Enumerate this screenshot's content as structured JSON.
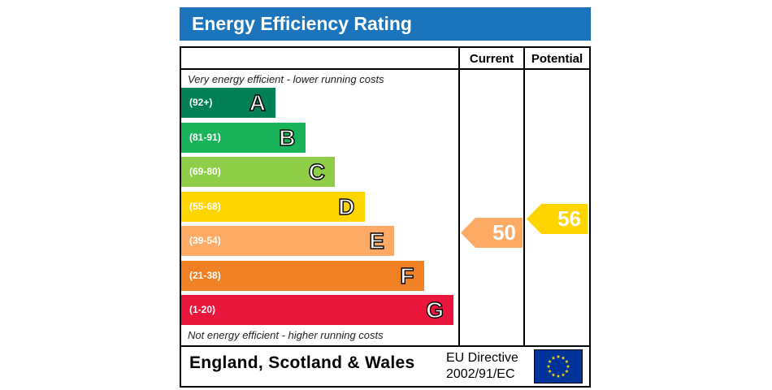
{
  "header": {
    "title": "Energy Efficiency Rating"
  },
  "columns": {
    "current": "Current",
    "potential": "Potential"
  },
  "notes": {
    "top": "Very energy efficient - lower running costs",
    "bottom": "Not energy efficient - higher running costs"
  },
  "chart_data": {
    "type": "bar",
    "title": "Energy Efficiency Rating",
    "categories": [
      "A",
      "B",
      "C",
      "D",
      "E",
      "F",
      "G"
    ],
    "ranges": [
      "(92+)",
      "(81-91)",
      "(69-80)",
      "(55-68)",
      "(39-54)",
      "(21-38)",
      "(1-20)"
    ],
    "colors": [
      "#008054",
      "#19b459",
      "#8dce46",
      "#ffd500",
      "#fcaa65",
      "#ef8023",
      "#e9153b"
    ],
    "current": {
      "value": 50,
      "band": "E",
      "color": "#fcaa65"
    },
    "potential": {
      "value": 56,
      "band": "D",
      "color": "#ffd500"
    }
  },
  "footer": {
    "region": "England, Scotland & Wales",
    "directive_line1": "EU Directive",
    "directive_line2": "2002/91/EC",
    "flag_icon": "eu-flag-icon"
  }
}
